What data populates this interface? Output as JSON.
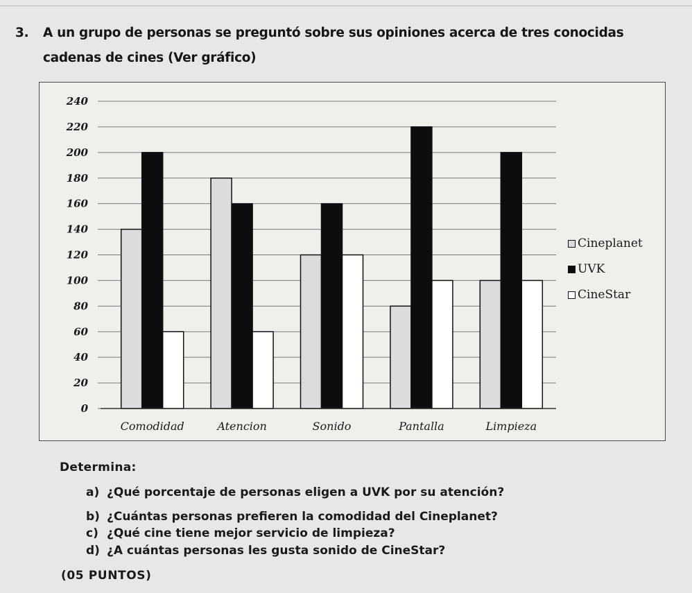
{
  "question": {
    "number": "3.",
    "text": "A un grupo de personas se preguntó sobre sus opiniones acerca de tres conocidas cadenas de cines (Ver gráfico)"
  },
  "chart_data": {
    "type": "bar",
    "categories": [
      "Comodidad",
      "Atencion",
      "Sonido",
      "Pantalla",
      "Limpieza"
    ],
    "series": [
      {
        "name": "Cineplanet",
        "values": [
          140,
          180,
          120,
          80,
          100
        ],
        "color": "#dcdcdc"
      },
      {
        "name": "UVK",
        "values": [
          200,
          160,
          160,
          220,
          200
        ],
        "color": "#0d0d0d"
      },
      {
        "name": "CineStar",
        "values": [
          60,
          60,
          120,
          100,
          100
        ],
        "color": "#ffffff"
      }
    ],
    "ylim": [
      0,
      240
    ],
    "yticks": [
      0,
      20,
      40,
      60,
      80,
      100,
      120,
      140,
      160,
      180,
      200,
      220,
      240
    ],
    "grid": true,
    "legend_position": "right"
  },
  "tasks": {
    "heading": "Determina:",
    "items": [
      {
        "label": "a)",
        "text": "¿Qué porcentaje de personas eligen a UVK por su atención?"
      },
      {
        "label": "b)",
        "text": "¿Cuántas personas prefieren la comodidad del Cineplanet?"
      },
      {
        "label": "c)",
        "text": "¿Qué cine tiene mejor servicio de limpieza?"
      },
      {
        "label": "d)",
        "text": "¿A cuántas personas les gusta sonido de CineStar?"
      }
    ],
    "points": "(05 PUNTOS)"
  }
}
